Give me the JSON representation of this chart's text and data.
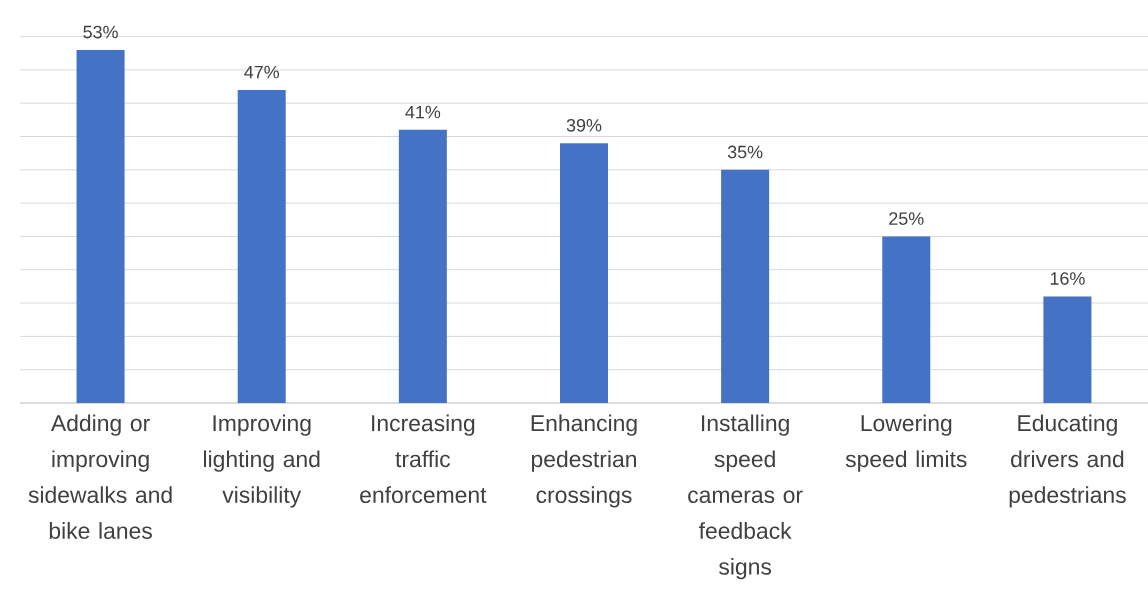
{
  "chart_data": {
    "type": "bar",
    "categories": [
      "Adding or improving sidewalks and bike lanes",
      "Improving lighting and visibility",
      "Increasing traffic enforcement",
      "Enhancing pedestrian crossings",
      "Installing speed cameras or feedback signs",
      "Lowering speed limits",
      "Educating drivers and pedestrians"
    ],
    "values": [
      53,
      47,
      41,
      39,
      35,
      25,
      16
    ],
    "value_labels": [
      "53%",
      "47%",
      "41%",
      "39%",
      "35%",
      "25%",
      "16%"
    ],
    "color": "#4472c4",
    "grid": "y",
    "tick_labels": "x"
  }
}
